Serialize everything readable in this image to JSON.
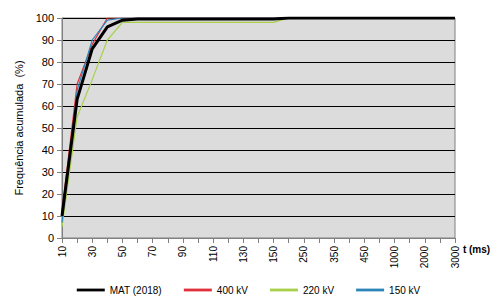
{
  "chart_data": {
    "type": "line",
    "y_label": "Frequência acumulada  (%)",
    "x_label": "t (ms)",
    "categories": [
      "10",
      null,
      "30",
      null,
      "50",
      null,
      "70",
      null,
      "90",
      null,
      "110",
      null,
      "130",
      null,
      "150",
      null,
      "250",
      null,
      "350",
      null,
      "450",
      null,
      "1000",
      null,
      "2000",
      null,
      "3000"
    ],
    "series": [
      {
        "name": "MAT (2018)",
        "color": "#000000",
        "values": [
          10,
          63,
          86,
          96,
          99,
          99.5,
          99.5,
          99.5,
          99.5,
          99.5,
          99.5,
          99.5,
          99.5,
          99.5,
          99.5,
          100,
          100,
          100,
          100,
          100,
          100,
          100,
          100,
          100,
          100,
          100,
          100
        ]
      },
      {
        "name": "400 kV",
        "color": "#e0303c",
        "values": [
          12,
          70,
          88,
          100,
          100,
          100,
          100,
          100,
          100,
          100,
          100,
          100,
          100,
          100,
          100,
          100,
          100,
          100,
          100,
          100,
          100,
          100,
          100,
          100,
          100,
          100,
          100
        ]
      },
      {
        "name": "220 kV",
        "color": "#a8d04a",
        "values": [
          5,
          55,
          72,
          90,
          98,
          98,
          98,
          98,
          98,
          98,
          98,
          98,
          98,
          98,
          98,
          100,
          100,
          100,
          100,
          100,
          100,
          100,
          100,
          100,
          100,
          100,
          100
        ]
      },
      {
        "name": "150 kV",
        "color": "#2e86b8",
        "values": [
          7,
          67,
          90,
          99,
          100,
          100,
          100,
          100,
          100,
          100,
          100,
          100,
          100,
          100,
          100,
          100,
          100,
          100,
          100,
          100,
          100,
          100,
          100,
          100,
          100,
          100,
          100
        ]
      }
    ],
    "ylim": [
      0,
      100
    ],
    "yticks": [
      0,
      10,
      20,
      30,
      40,
      50,
      60,
      70,
      80,
      90,
      100
    ],
    "grid": true,
    "legend": "bottom"
  }
}
